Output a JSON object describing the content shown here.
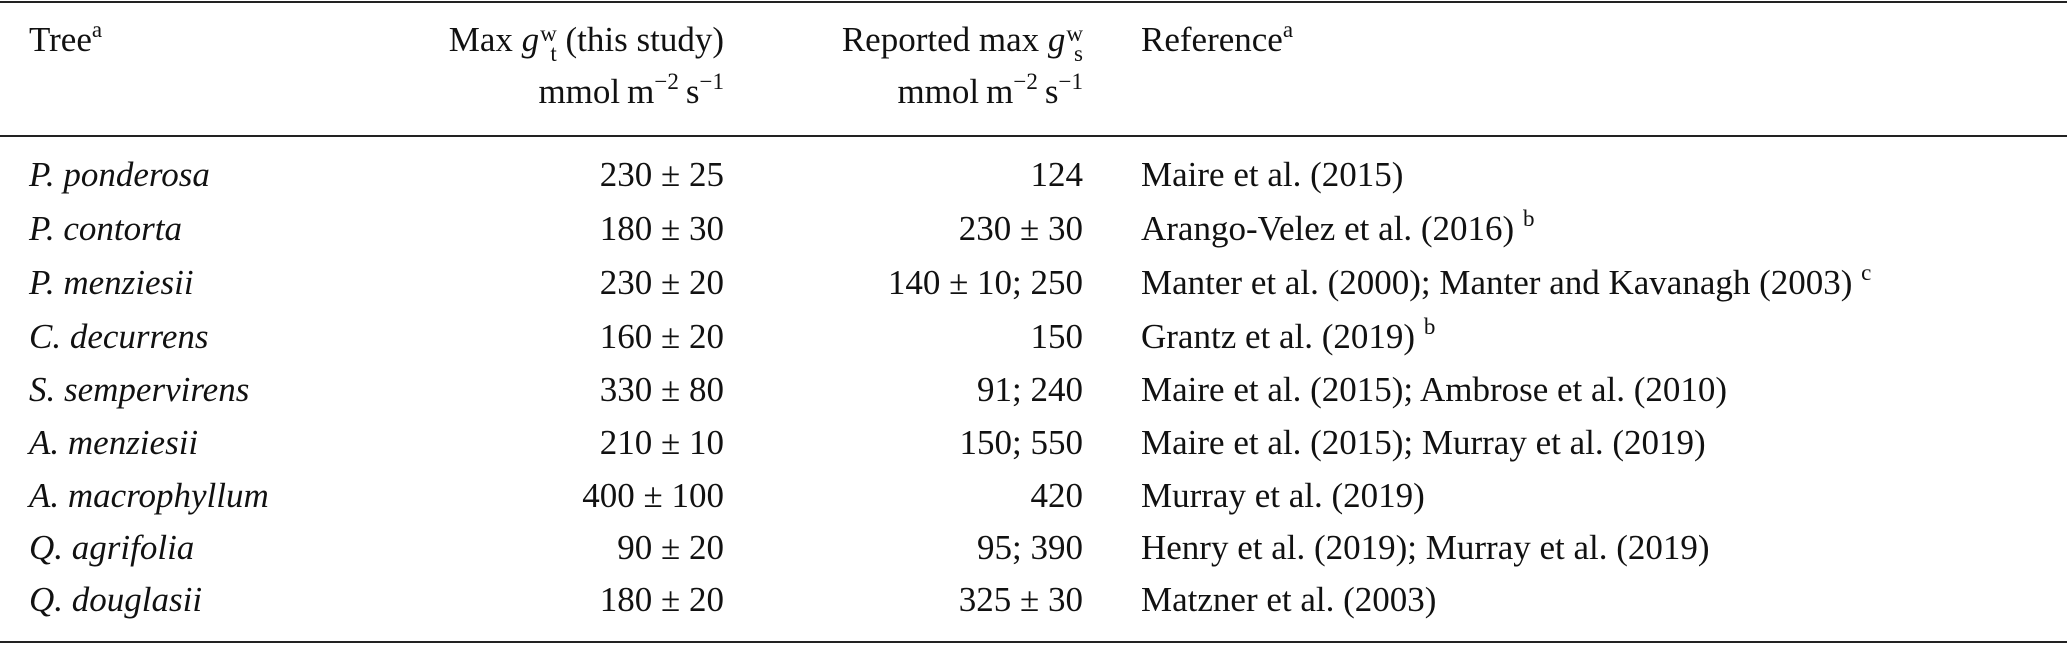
{
  "table": {
    "header": {
      "tree": {
        "text": "Tree",
        "sup": "a"
      },
      "max": {
        "prefix": "Max",
        "symbol": "g",
        "sub": "t",
        "sup": "w",
        "suffix": "(this study)"
      },
      "reported": {
        "prefix": "Reported max",
        "symbol": "g",
        "sub": "s",
        "sup": "w"
      },
      "reference": {
        "text": "Reference",
        "sup": "a"
      },
      "unit": {
        "base1": "mmol",
        "base2": "m",
        "exp1": "−2",
        "base3": "s",
        "exp2": "−1"
      }
    },
    "rows": [
      {
        "tree": "P. ponderosa",
        "max": "230 ± 25",
        "reported": "124",
        "reference": "Maire et al. (2015)"
      },
      {
        "tree": "P. contorta",
        "max": "180 ± 30",
        "reported": "230 ± 30",
        "reference": "Arango-Velez et al. (2016)",
        "note": "b"
      },
      {
        "tree": "P. menziesii",
        "max": "230 ± 20",
        "reported": "140 ± 10; 250",
        "reference": "Manter et al. (2000); Manter and Kavanagh (2003)",
        "note": "c"
      },
      {
        "tree": "C. decurrens",
        "max": "160 ± 20",
        "reported": "150",
        "reference": "Grantz et al. (2019)",
        "note": "b"
      },
      {
        "tree": "S. sempervirens",
        "max": "330 ± 80",
        "reported": "91; 240",
        "reference": "Maire et al. (2015); Ambrose et al. (2010)"
      },
      {
        "tree": "A. menziesii",
        "max": "210 ± 10",
        "reported": "150; 550",
        "reference": "Maire et al. (2015); Murray et al. (2019)"
      },
      {
        "tree": "A. macrophyllum",
        "max": "400 ± 100",
        "reported": "420",
        "reference": "Murray et al. (2019)"
      },
      {
        "tree": "Q. agrifolia",
        "max": "90 ± 20",
        "reported": "95; 390",
        "reference": "Henry et al. (2019); Murray et al. (2019)"
      },
      {
        "tree": "Q. douglasii",
        "max": "180 ± 20",
        "reported": "325 ± 30",
        "reference": "Matzner et al. (2003)"
      }
    ]
  }
}
